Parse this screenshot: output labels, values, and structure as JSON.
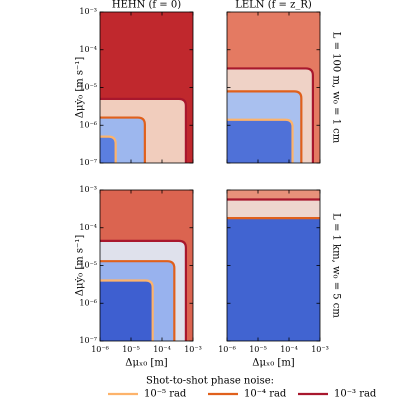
{
  "chart_data": [
    {
      "type": "contour",
      "title": "HEHN (f = 0)",
      "ylabel": "Δμẏ₀ [m s⁻¹]",
      "log_scale": true,
      "show_xticklabels": false,
      "show_yticklabels": true,
      "background": "#c0282d",
      "xlim": [
        1e-06,
        0.001
      ],
      "ylim": [
        1e-07,
        0.001
      ],
      "xticks": [
        {
          "value": 1e-06,
          "label": "10⁻⁶"
        },
        {
          "value": 1e-05,
          "label": "10⁻⁵"
        },
        {
          "value": 0.0001,
          "label": "10⁻⁴"
        },
        {
          "value": 0.001,
          "label": "10⁻³"
        }
      ],
      "yticks": [
        {
          "value": 1e-07,
          "label": "10⁻⁷"
        },
        {
          "value": 1e-06,
          "label": "10⁻⁶"
        },
        {
          "value": 1e-05,
          "label": "10⁻⁵"
        },
        {
          "value": 0.0001,
          "label": "10⁻⁴"
        },
        {
          "value": 0.001,
          "label": "10⁻³"
        }
      ],
      "contours": [
        {
          "level": 2,
          "x": 0.00059,
          "y": 5e-06,
          "fill": "#f1cdbd"
        },
        {
          "level": 1,
          "x": 2.8e-05,
          "y": 1.6e-06,
          "fill": "#9db7ee"
        },
        {
          "level": 0,
          "x": 3.2e-06,
          "y": 5e-07,
          "fill": "#5b7fe0"
        }
      ]
    },
    {
      "type": "contour",
      "title": "LELN (f = z_R)",
      "row_label": "L = 100 m, w₀ = 1 cm",
      "log_scale": true,
      "show_xticklabels": false,
      "show_yticklabels": false,
      "background": "#e47a62",
      "xlim": [
        1e-06,
        0.001
      ],
      "ylim": [
        1e-07,
        0.001
      ],
      "xticks": [
        {
          "value": 1e-06,
          "label": "10⁻⁶"
        },
        {
          "value": 1e-05,
          "label": "10⁻⁵"
        },
        {
          "value": 0.0001,
          "label": "10⁻⁴"
        },
        {
          "value": 0.001,
          "label": "10⁻³"
        }
      ],
      "yticks": [
        {
          "value": 1e-07,
          "label": "10⁻⁷"
        },
        {
          "value": 1e-06,
          "label": "10⁻⁶"
        },
        {
          "value": 1e-05,
          "label": "10⁻⁵"
        },
        {
          "value": 0.0001,
          "label": "10⁻⁴"
        },
        {
          "value": 0.001,
          "label": "10⁻³"
        }
      ],
      "contours": [
        {
          "level": 2,
          "x": 0.00059,
          "y": 3.2e-05,
          "fill": "#efd2c6"
        },
        {
          "level": 1,
          "x": 0.00025,
          "y": 7.9e-06,
          "fill": "#a9c0ef"
        },
        {
          "level": 0,
          "x": 0.00013,
          "y": 1.4e-06,
          "fill": "#4f71d8"
        }
      ]
    },
    {
      "type": "contour",
      "ylabel": "Δμẏ₀ [m s⁻¹]",
      "xlabel": "Δμₓ₀ [m]",
      "log_scale": true,
      "show_xticklabels": true,
      "show_yticklabels": true,
      "background": "#db6450",
      "xlim": [
        1e-06,
        0.001
      ],
      "ylim": [
        1e-07,
        0.001
      ],
      "xticks": [
        {
          "value": 1e-06,
          "label": "10⁻⁶"
        },
        {
          "value": 1e-05,
          "label": "10⁻⁵"
        },
        {
          "value": 0.0001,
          "label": "10⁻⁴"
        },
        {
          "value": 0.001,
          "label": "10⁻³"
        }
      ],
      "yticks": [
        {
          "value": 1e-07,
          "label": "10⁻⁷"
        },
        {
          "value": 1e-06,
          "label": "10⁻⁶"
        },
        {
          "value": 1e-05,
          "label": "10⁻⁵"
        },
        {
          "value": 0.0001,
          "label": "10⁻⁴"
        },
        {
          "value": 0.001,
          "label": "10⁻³"
        }
      ],
      "contours": [
        {
          "level": 2,
          "x": 0.00059,
          "y": 4.5e-05,
          "fill": "#dfe1ec"
        },
        {
          "level": 1,
          "x": 0.00025,
          "y": 1.3e-05,
          "fill": "#98b2ee"
        },
        {
          "level": 0,
          "x": 5e-05,
          "y": 4e-06,
          "fill": "#3e5fd0"
        }
      ]
    },
    {
      "type": "contour",
      "xlabel": "Δμₓ₀ [m]",
      "row_label": "L = 1 km, w₀ = 5 cm",
      "log_scale": true,
      "show_xticklabels": true,
      "show_yticklabels": false,
      "background": "#e8917a",
      "xlim": [
        1e-06,
        0.001
      ],
      "ylim": [
        1e-07,
        0.001
      ],
      "xticks": [
        {
          "value": 1e-06,
          "label": "10⁻⁶"
        },
        {
          "value": 1e-05,
          "label": "10⁻⁵"
        },
        {
          "value": 0.0001,
          "label": "10⁻⁴"
        },
        {
          "value": 0.001,
          "label": "10⁻³"
        }
      ],
      "yticks": [
        {
          "value": 1e-07,
          "label": "10⁻⁷"
        },
        {
          "value": 1e-06,
          "label": "10⁻⁶"
        },
        {
          "value": 1e-05,
          "label": "10⁻⁵"
        },
        {
          "value": 0.0001,
          "label": "10⁻⁴"
        },
        {
          "value": 0.001,
          "label": "10⁻³"
        }
      ],
      "contours": [
        {
          "level": 2,
          "x": null,
          "y": 0.00056,
          "fill": "#eed6ce"
        },
        {
          "level": 1,
          "x": null,
          "y": 0.00018,
          "fill": "#4164d1"
        }
      ]
    }
  ],
  "legend": {
    "title": "Shot-to-shot phase noise:",
    "items": [
      {
        "name": "10⁻⁵ rad",
        "color": "#fdb36b"
      },
      {
        "name": "10⁻⁴ rad",
        "color": "#e0601c"
      },
      {
        "name": "10⁻³ rad",
        "color": "#a8172d"
      }
    ]
  }
}
